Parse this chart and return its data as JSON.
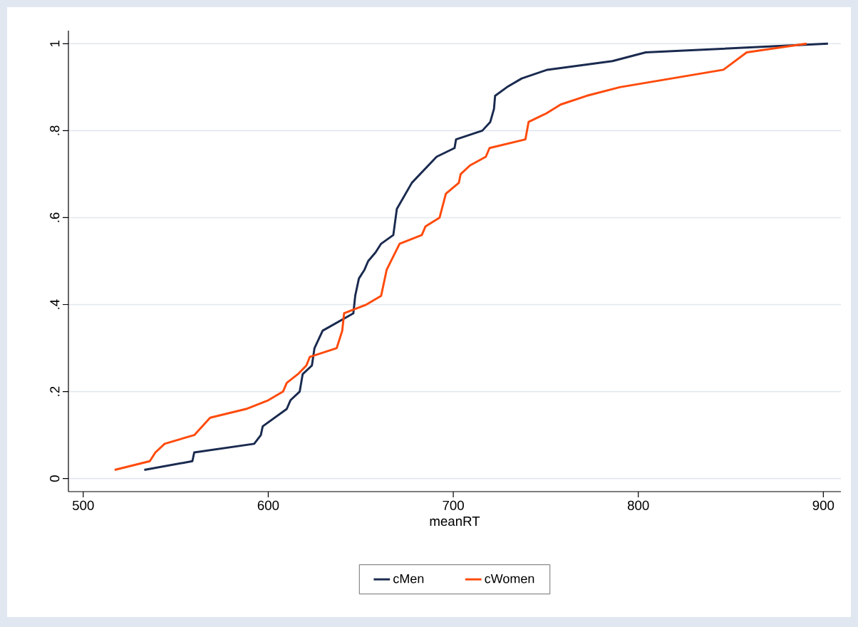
{
  "chart_data": {
    "type": "line",
    "xlabel": "meanRT",
    "xlim": [
      492,
      909.5
    ],
    "ylim": [
      -0.03,
      1.03
    ],
    "xticks": [
      500,
      600,
      700,
      800,
      900
    ],
    "yticks": [
      0,
      {
        "value": 0.2,
        "label": ".2"
      },
      {
        "value": 0.4,
        "label": ".4"
      },
      {
        "value": 0.6,
        "label": ".6"
      },
      {
        "value": 0.8,
        "label": ".8"
      },
      1
    ],
    "grid": "y",
    "legend": "bottom",
    "marker": "none",
    "line_style": "solid",
    "series": [
      {
        "name": "cMen",
        "color": "#1a2a4f",
        "x": [
          533,
          559,
          560,
          592.4,
          596,
          597,
          610,
          612,
          617,
          618.6,
          623.6,
          625,
          629.4,
          646,
          647,
          649,
          652,
          654,
          658,
          661,
          667.6,
          669.5,
          677.6,
          691,
          700.7,
          701.5,
          715.7,
          720,
          722,
          722.6,
          729,
          737,
          750.8,
          786,
          804,
          902.5
        ],
        "values": [
          0.02,
          0.04,
          0.06,
          0.08,
          0.1,
          0.12,
          0.16,
          0.18,
          0.2,
          0.24,
          0.26,
          0.3,
          0.34,
          0.38,
          0.42,
          0.46,
          0.48,
          0.5,
          0.52,
          0.54,
          0.56,
          0.62,
          0.68,
          0.74,
          0.76,
          0.78,
          0.8,
          0.82,
          0.85,
          0.88,
          0.9,
          0.92,
          0.94,
          0.96,
          0.98,
          1
        ]
      },
      {
        "name": "cWomen",
        "color": "#ff4a0a",
        "x": [
          517,
          536,
          539,
          544,
          560,
          568.6,
          588,
          600,
          608,
          610,
          616,
          620.6,
          622.5,
          637,
          640,
          641,
          653,
          661,
          664,
          671,
          683,
          685,
          692.6,
          696,
          703,
          704,
          709,
          717.6,
          719.6,
          739,
          740.7,
          750.4,
          758,
          772,
          790,
          846,
          858.6,
          891
        ],
        "values": [
          0.02,
          0.04,
          0.06,
          0.08,
          0.1,
          0.14,
          0.16,
          0.18,
          0.2,
          0.22,
          0.24,
          0.26,
          0.28,
          0.3,
          0.34,
          0.38,
          0.4,
          0.42,
          0.48,
          0.54,
          0.56,
          0.58,
          0.6,
          0.655,
          0.68,
          0.7,
          0.72,
          0.74,
          0.76,
          0.78,
          0.82,
          0.84,
          0.86,
          0.88,
          0.9,
          0.94,
          0.98,
          1
        ]
      }
    ]
  }
}
